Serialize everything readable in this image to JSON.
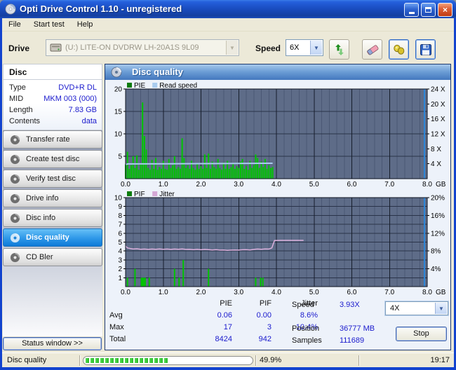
{
  "window": {
    "title": "Opti Drive Control 1.10 - unregistered"
  },
  "menu": {
    "items": [
      "File",
      "Start test",
      "Help"
    ]
  },
  "toolbar": {
    "drive_label": "Drive",
    "drive_value": "(U:)  LITE-ON DVDRW LH-20A1S 9L09",
    "speed_label": "Speed",
    "speed_value": "6X"
  },
  "sidebar": {
    "disc_header": "Disc",
    "fields": [
      {
        "label": "Type",
        "value": "DVD+R DL"
      },
      {
        "label": "MID",
        "value": "MKM 003 (000)"
      },
      {
        "label": "Length",
        "value": "7.83 GB"
      },
      {
        "label": "Contents",
        "value": "data"
      }
    ],
    "buttons": [
      {
        "label": "Transfer rate",
        "active": false
      },
      {
        "label": "Create test disc",
        "active": false
      },
      {
        "label": "Verify test disc",
        "active": false
      },
      {
        "label": "Drive info",
        "active": false
      },
      {
        "label": "Disc info",
        "active": false
      },
      {
        "label": "Disc quality",
        "active": true
      },
      {
        "label": "CD Bler",
        "active": false
      }
    ],
    "status_window_label": "Status window >>"
  },
  "main": {
    "header": "Disc quality"
  },
  "chart_data": [
    {
      "type": "bar",
      "title": "PIE / Read speed",
      "x_unit": "GB",
      "xlim": [
        0,
        8
      ],
      "x_major_ticks": [
        0,
        1,
        2,
        3,
        4,
        5,
        6,
        7,
        8
      ],
      "x_tick_labels": [
        "0.0",
        "1.0",
        "2.0",
        "3.0",
        "4.0",
        "5.0",
        "6.0",
        "7.0",
        "8.0"
      ],
      "x_minor_step": 0.2,
      "ylim": [
        0,
        20
      ],
      "grid_y": [
        5,
        10,
        15
      ],
      "left_ticks": [
        [
          "20",
          20
        ],
        [
          "15",
          15
        ],
        [
          "10",
          10
        ],
        [
          "5",
          5
        ]
      ],
      "right_ticks": [
        [
          "24 X",
          20
        ],
        [
          "20 X",
          16.67
        ],
        [
          "16 X",
          13.33
        ],
        [
          "12 X",
          10
        ],
        [
          "8 X",
          6.67
        ],
        [
          "4 X",
          3.33
        ]
      ],
      "legend": [
        {
          "label": "PIE",
          "color": "#0B7C0B"
        },
        {
          "label": "Read speed",
          "color": "#A9CCEF"
        }
      ],
      "position_marker": {
        "x": 7.93,
        "color": "#2E86D8"
      },
      "series": [
        {
          "name": "PIE",
          "type": "bar",
          "color": "#00C400",
          "points": [
            [
              0.0,
              3.2
            ],
            [
              0.05,
              6.0
            ],
            [
              0.1,
              2.2
            ],
            [
              0.15,
              3.0
            ],
            [
              0.2,
              5.0
            ],
            [
              0.25,
              2.4
            ],
            [
              0.3,
              5.2
            ],
            [
              0.35,
              2.0
            ],
            [
              0.4,
              3.4
            ],
            [
              0.45,
              17.0
            ],
            [
              0.5,
              9.5
            ],
            [
              0.55,
              6.5
            ],
            [
              0.6,
              2.4
            ],
            [
              0.65,
              2.0
            ],
            [
              0.7,
              4.2
            ],
            [
              0.75,
              2.2
            ],
            [
              0.8,
              4.6
            ],
            [
              0.85,
              2.0
            ],
            [
              0.9,
              2.6
            ],
            [
              0.95,
              2.2
            ],
            [
              1.0,
              4.0
            ],
            [
              1.05,
              2.2
            ],
            [
              1.1,
              2.0
            ],
            [
              1.15,
              4.4
            ],
            [
              1.2,
              2.4
            ],
            [
              1.25,
              3.0
            ],
            [
              1.3,
              5.0
            ],
            [
              1.35,
              2.2
            ],
            [
              1.4,
              2.6
            ],
            [
              1.45,
              2.2
            ],
            [
              1.5,
              9.0
            ],
            [
              1.55,
              4.6
            ],
            [
              1.6,
              2.4
            ],
            [
              1.65,
              3.0
            ],
            [
              1.7,
              2.2
            ],
            [
              1.75,
              4.0
            ],
            [
              1.8,
              2.4
            ],
            [
              1.85,
              2.0
            ],
            [
              1.9,
              3.4
            ],
            [
              1.95,
              2.2
            ],
            [
              2.0,
              2.8
            ],
            [
              2.05,
              2.2
            ],
            [
              2.1,
              5.4
            ],
            [
              2.15,
              2.4
            ],
            [
              2.2,
              5.6
            ],
            [
              2.25,
              2.2
            ],
            [
              2.3,
              3.8
            ],
            [
              2.35,
              2.6
            ],
            [
              2.4,
              2.2
            ],
            [
              2.45,
              4.4
            ],
            [
              2.5,
              2.4
            ],
            [
              2.55,
              2.0
            ],
            [
              2.6,
              3.6
            ],
            [
              2.65,
              2.2
            ],
            [
              2.7,
              4.0
            ],
            [
              2.75,
              2.2
            ],
            [
              2.8,
              2.6
            ],
            [
              2.85,
              3.4
            ],
            [
              2.9,
              2.2
            ],
            [
              2.95,
              2.8
            ],
            [
              3.0,
              2.4
            ],
            [
              3.05,
              3.8
            ],
            [
              3.1,
              4.4
            ],
            [
              3.15,
              2.2
            ],
            [
              3.2,
              2.8
            ],
            [
              3.25,
              2.0
            ],
            [
              3.3,
              4.0
            ],
            [
              3.35,
              2.4
            ],
            [
              3.4,
              3.0
            ],
            [
              3.45,
              5.4
            ],
            [
              3.5,
              4.6
            ],
            [
              3.55,
              2.4
            ],
            [
              3.6,
              3.8
            ],
            [
              3.65,
              2.6
            ],
            [
              3.7,
              4.4
            ],
            [
              3.75,
              2.2
            ],
            [
              3.8,
              3.0
            ],
            [
              3.85,
              2.4
            ],
            [
              3.9,
              2.6
            ]
          ]
        },
        {
          "name": "Read speed",
          "type": "line",
          "width": 2,
          "color": "#A9CCEF",
          "points": [
            [
              0.0,
              3.15
            ],
            [
              0.06,
              3.3
            ],
            [
              1.0,
              3.32
            ],
            [
              2.0,
              3.36
            ],
            [
              3.0,
              3.4
            ],
            [
              3.9,
              3.44
            ]
          ]
        }
      ]
    },
    {
      "type": "bar",
      "title": "PIF / Jitter",
      "x_unit": "GB",
      "xlim": [
        0,
        8
      ],
      "x_major_ticks": [
        0,
        1,
        2,
        3,
        4,
        5,
        6,
        7,
        8
      ],
      "x_tick_labels": [
        "0.0",
        "1.0",
        "2.0",
        "3.0",
        "4.0",
        "5.0",
        "6.0",
        "7.0",
        "8.0"
      ],
      "x_minor_step": 0.2,
      "ylim": [
        0,
        10
      ],
      "grid_y": [
        1,
        2,
        3,
        4,
        5,
        6,
        7,
        8,
        9
      ],
      "left_ticks": [
        [
          "10",
          10
        ],
        [
          "9",
          9
        ],
        [
          "8",
          8
        ],
        [
          "7",
          7
        ],
        [
          "6",
          6
        ],
        [
          "5",
          5
        ],
        [
          "4",
          4
        ],
        [
          "3",
          3
        ],
        [
          "2",
          2
        ],
        [
          "1",
          1
        ]
      ],
      "right_ticks": [
        [
          "20%",
          10
        ],
        [
          "16%",
          8
        ],
        [
          "12%",
          6
        ],
        [
          "8%",
          4
        ],
        [
          "4%",
          2
        ]
      ],
      "legend": [
        {
          "label": "PIF",
          "color": "#0B7C0B"
        },
        {
          "label": "Jitter",
          "color": "#D5A8D6"
        }
      ],
      "position_marker": {
        "x": 7.93,
        "color": "#2E86D8"
      },
      "series": [
        {
          "name": "PIF",
          "type": "bar",
          "color": "#00C400",
          "points": [
            [
              0.05,
              1
            ],
            [
              0.25,
              2
            ],
            [
              0.42,
              1
            ],
            [
              0.45,
              1
            ],
            [
              0.48,
              1
            ],
            [
              0.52,
              1
            ],
            [
              0.63,
              1
            ],
            [
              1.3,
              2
            ],
            [
              1.42,
              1
            ],
            [
              1.53,
              3
            ],
            [
              2.2,
              2
            ],
            [
              3.45,
              1
            ],
            [
              3.58,
              1
            ],
            [
              3.64,
              1
            ]
          ]
        },
        {
          "name": "Jitter",
          "type": "line",
          "width": 1.5,
          "color": "#DDB2DE",
          "points": [
            [
              0.0,
              4.55
            ],
            [
              0.05,
              4.35
            ],
            [
              0.12,
              4.28
            ],
            [
              0.2,
              4.22
            ],
            [
              0.3,
              4.25
            ],
            [
              0.4,
              4.2
            ],
            [
              0.5,
              4.22
            ],
            [
              0.6,
              4.18
            ],
            [
              0.7,
              4.22
            ],
            [
              0.8,
              4.2
            ],
            [
              0.9,
              4.24
            ],
            [
              1.0,
              4.2
            ],
            [
              1.1,
              4.22
            ],
            [
              1.2,
              4.18
            ],
            [
              1.3,
              4.22
            ],
            [
              1.4,
              4.2
            ],
            [
              1.5,
              4.24
            ],
            [
              1.6,
              4.18
            ],
            [
              1.7,
              4.2
            ],
            [
              1.8,
              4.16
            ],
            [
              1.9,
              4.2
            ],
            [
              2.0,
              4.14
            ],
            [
              2.1,
              4.18
            ],
            [
              2.2,
              4.16
            ],
            [
              2.3,
              4.12
            ],
            [
              2.4,
              4.16
            ],
            [
              2.5,
              4.1
            ],
            [
              2.6,
              4.12
            ],
            [
              2.7,
              4.08
            ],
            [
              2.8,
              4.1
            ],
            [
              2.9,
              4.12
            ],
            [
              3.0,
              4.1
            ],
            [
              3.1,
              4.14
            ],
            [
              3.2,
              4.16
            ],
            [
              3.3,
              4.12
            ],
            [
              3.4,
              4.18
            ],
            [
              3.5,
              4.22
            ],
            [
              3.6,
              4.2
            ],
            [
              3.7,
              4.24
            ],
            [
              3.8,
              4.22
            ],
            [
              3.88,
              4.35
            ],
            [
              3.95,
              5.18
            ],
            [
              4.1,
              5.2
            ],
            [
              4.3,
              5.2
            ],
            [
              4.5,
              5.2
            ],
            [
              4.72,
              5.2
            ]
          ]
        }
      ]
    }
  ],
  "stats": {
    "columns": [
      "PIE",
      "PIF",
      "Jitter"
    ],
    "rows": [
      {
        "label": "Avg",
        "values": [
          "0.06",
          "0.00",
          "8.6%"
        ]
      },
      {
        "label": "Max",
        "values": [
          "17",
          "3",
          "10.4%"
        ]
      },
      {
        "label": "Total",
        "values": [
          "8424",
          "942",
          ""
        ]
      }
    ],
    "speed_label": "Speed",
    "speed_value": "3.93X",
    "position_label": "Position",
    "position_value": "36777 MB",
    "samples_label": "Samples",
    "samples_value": "111689",
    "speed_select": "4X",
    "stop_label": "Stop"
  },
  "statusbar": {
    "mode": "Disc quality",
    "progress_percent": 49.9,
    "progress_label": "49.9%",
    "time": "19:17"
  },
  "colors": {
    "titlebar_blue": "#1A4DC2",
    "value_blue": "#1A1ACD",
    "plot_bg": "#5E6C88",
    "grid_minor": "#4A5774",
    "grid_major": "#161D2B",
    "grid_horizontal": "#2A3349",
    "pie_green": "#00C400",
    "read_speed_blue": "#A9CCEF",
    "jitter_plum": "#DDB2DE",
    "marker_blue": "#2E86D8",
    "active_button_blue": "#1287E0",
    "progress_green": "#2FBE2F"
  }
}
